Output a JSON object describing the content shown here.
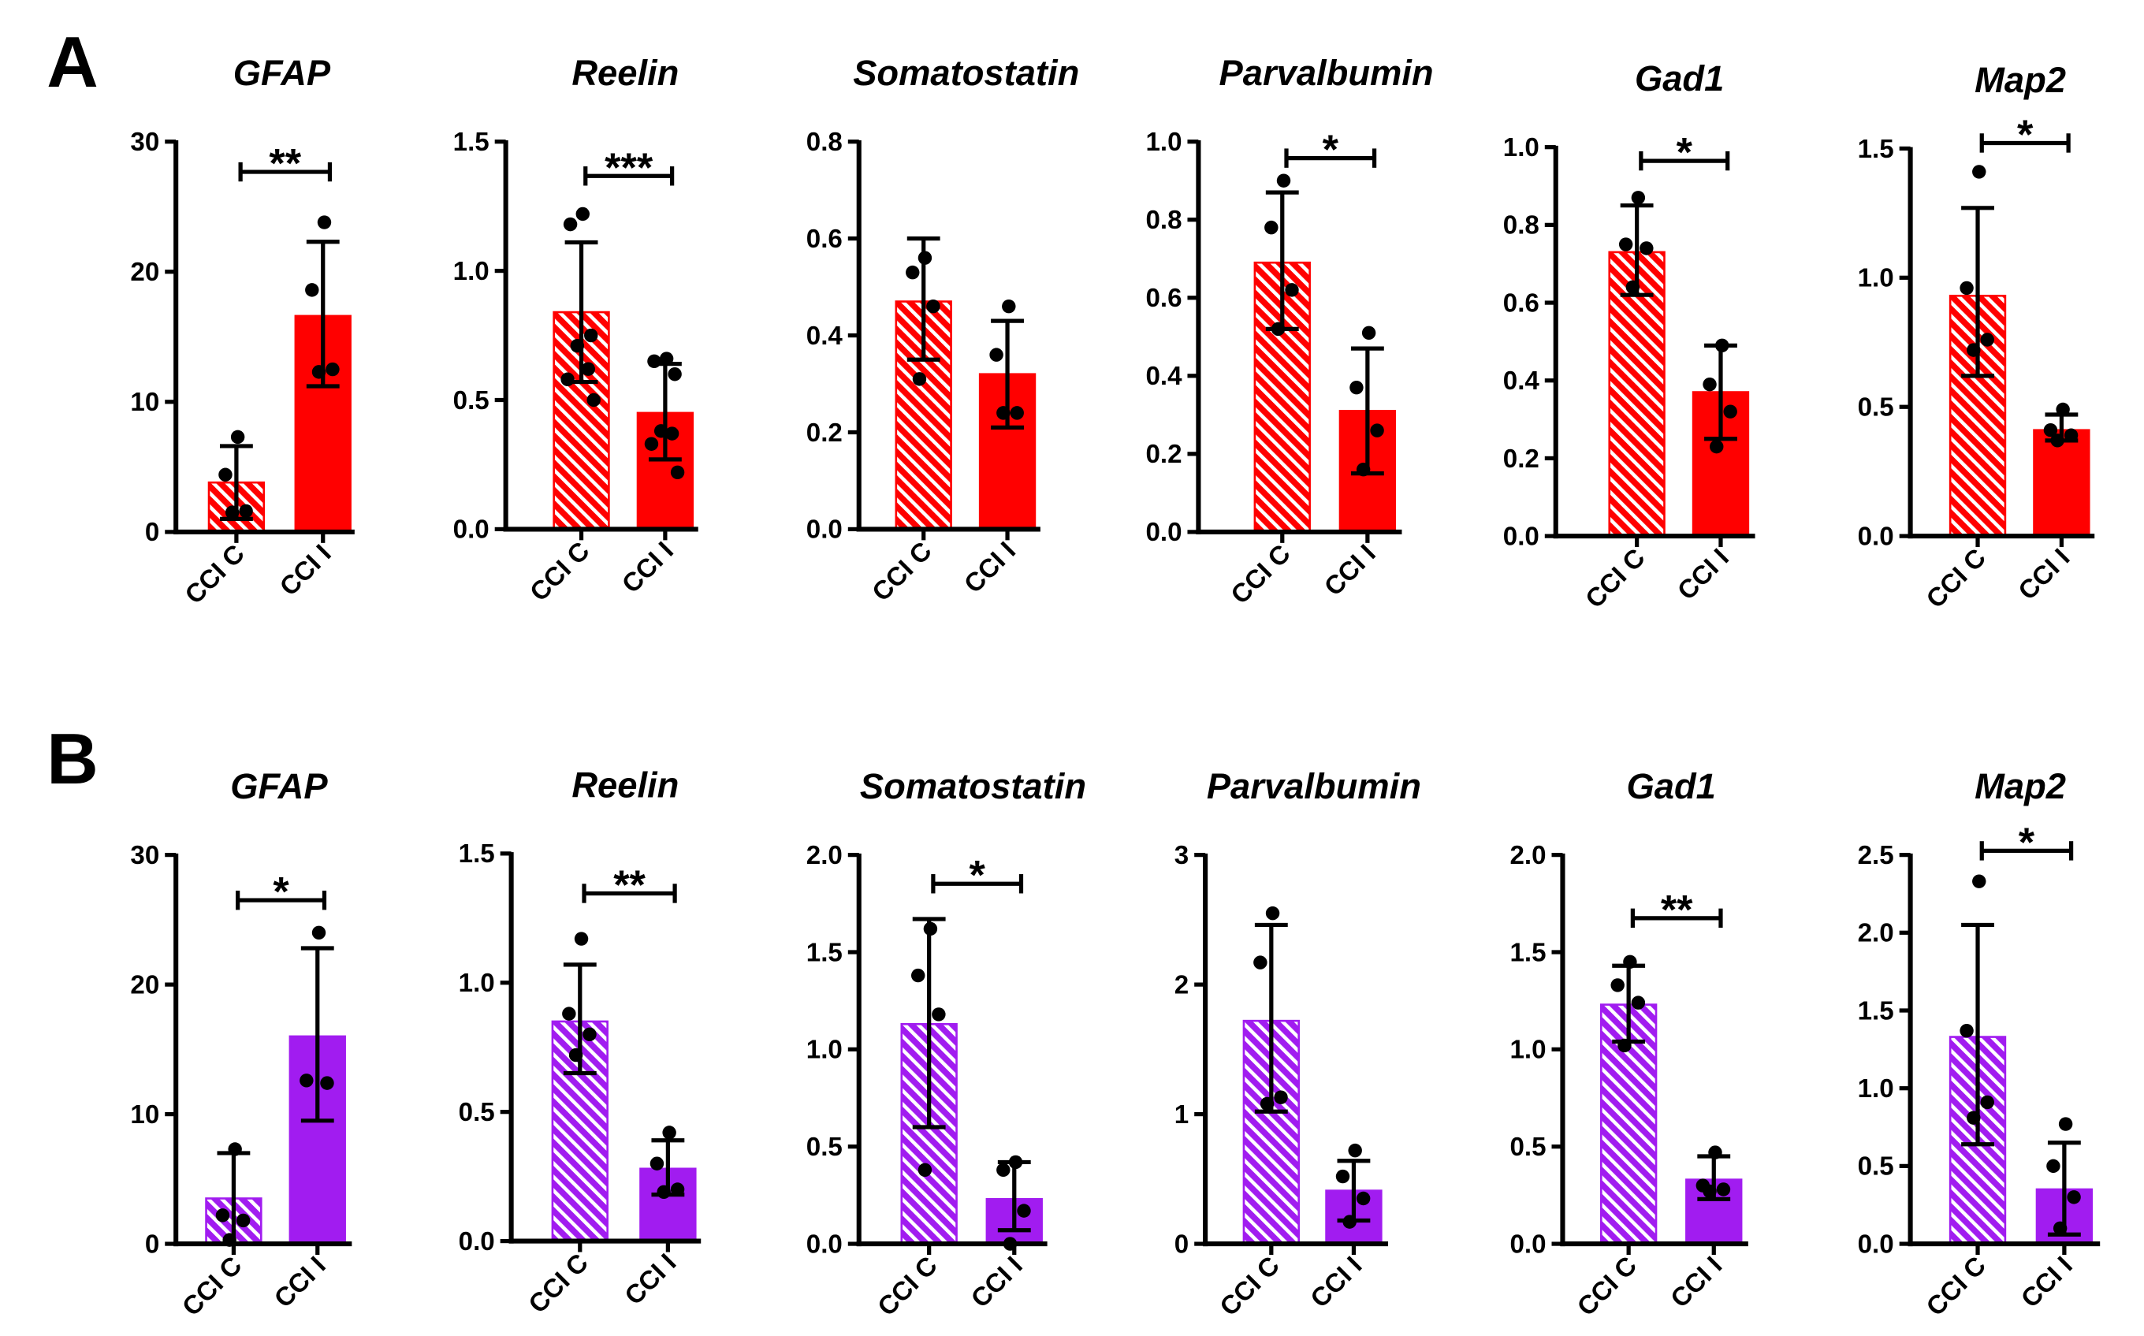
{
  "panels": [
    {
      "label": "A"
    },
    {
      "label": "B"
    }
  ],
  "chart_data": [
    {
      "type": "bar",
      "title": "GFAP",
      "color": "#FF0000",
      "categories": [
        "CCI C",
        "CCI I"
      ],
      "ylim": [
        0,
        30
      ],
      "yticks": [
        "0",
        "10",
        "20",
        "30"
      ],
      "series": [
        {
          "name": "CCI C",
          "mean": 3.8,
          "error": [
            1.0,
            6.6
          ],
          "points": [
            7.3,
            4.4,
            1.6,
            1.5
          ]
        },
        {
          "name": "CCI I",
          "mean": 16.6,
          "error": [
            11.2,
            22.3
          ],
          "points": [
            23.8,
            18.6,
            12.5,
            12.3
          ]
        }
      ],
      "significance": "**"
    },
    {
      "type": "bar",
      "title": "Reelin",
      "color": "#FF0000",
      "categories": [
        "CCI C",
        "CCI I"
      ],
      "ylim": [
        0,
        1.5
      ],
      "yticks": [
        "0.0",
        "0.5",
        "1.0",
        "1.5"
      ],
      "series": [
        {
          "name": "CCI C",
          "mean": 0.84,
          "error": [
            0.57,
            1.11
          ],
          "points": [
            1.22,
            1.18,
            0.75,
            0.71,
            0.62,
            0.58,
            0.5
          ]
        },
        {
          "name": "CCI I",
          "mean": 0.45,
          "error": [
            0.27,
            0.64
          ],
          "points": [
            0.66,
            0.65,
            0.6,
            0.38,
            0.37,
            0.33,
            0.22
          ]
        }
      ],
      "significance": "***"
    },
    {
      "type": "bar",
      "title": "Somatostatin",
      "color": "#FF0000",
      "categories": [
        "CCI C",
        "CCI I"
      ],
      "ylim": [
        0,
        0.8
      ],
      "yticks": [
        "0.0",
        "0.2",
        "0.4",
        "0.6",
        "0.8"
      ],
      "series": [
        {
          "name": "CCI C",
          "mean": 0.47,
          "error": [
            0.35,
            0.6
          ],
          "points": [
            0.56,
            0.53,
            0.46,
            0.31
          ]
        },
        {
          "name": "CCI I",
          "mean": 0.32,
          "error": [
            0.21,
            0.43
          ],
          "points": [
            0.46,
            0.36,
            0.24,
            0.24
          ]
        }
      ],
      "significance": null
    },
    {
      "type": "bar",
      "title": "Parvalbumin",
      "color": "#FF0000",
      "categories": [
        "CCI C",
        "CCI I"
      ],
      "ylim": [
        0,
        1.0
      ],
      "yticks": [
        "0.0",
        "0.2",
        "0.4",
        "0.6",
        "0.8",
        "1.0"
      ],
      "series": [
        {
          "name": "CCI C",
          "mean": 0.69,
          "error": [
            0.52,
            0.87
          ],
          "points": [
            0.9,
            0.78,
            0.62,
            0.52
          ]
        },
        {
          "name": "CCI I",
          "mean": 0.31,
          "error": [
            0.15,
            0.47
          ],
          "points": [
            0.51,
            0.37,
            0.26,
            0.16
          ]
        }
      ],
      "significance": "*"
    },
    {
      "type": "bar",
      "title": "Gad1",
      "color": "#FF0000",
      "categories": [
        "CCI C",
        "CCI I"
      ],
      "ylim": [
        0,
        1.0
      ],
      "yticks": [
        "0.0",
        "0.2",
        "0.4",
        "0.6",
        "0.8",
        "1.0"
      ],
      "series": [
        {
          "name": "CCI C",
          "mean": 0.73,
          "error": [
            0.62,
            0.85
          ],
          "points": [
            0.87,
            0.75,
            0.74,
            0.64
          ]
        },
        {
          "name": "CCI I",
          "mean": 0.37,
          "error": [
            0.25,
            0.49
          ],
          "points": [
            0.49,
            0.39,
            0.32,
            0.23
          ]
        }
      ],
      "significance": "*"
    },
    {
      "type": "bar",
      "title": "Map2",
      "color": "#FF0000",
      "categories": [
        "CCI C",
        "CCI I"
      ],
      "ylim": [
        0,
        1.5
      ],
      "yticks": [
        "0.0",
        "0.5",
        "1.0",
        "1.5"
      ],
      "series": [
        {
          "name": "CCI C",
          "mean": 0.93,
          "error": [
            0.62,
            1.27
          ],
          "points": [
            1.41,
            0.96,
            0.76,
            0.72
          ]
        },
        {
          "name": "CCI I",
          "mean": 0.41,
          "error": [
            0.37,
            0.47
          ],
          "points": [
            0.49,
            0.41,
            0.39,
            0.37
          ]
        }
      ],
      "significance": "*"
    },
    {
      "type": "bar",
      "title": "GFAP",
      "color": "#A11CF0",
      "categories": [
        "CCI C",
        "CCI I"
      ],
      "ylim": [
        0,
        30
      ],
      "yticks": [
        "0",
        "10",
        "20",
        "30"
      ],
      "series": [
        {
          "name": "CCI C",
          "mean": 3.5,
          "error": [
            0.0,
            7.0
          ],
          "points": [
            7.3,
            2.2,
            1.8,
            0.3
          ]
        },
        {
          "name": "CCI I",
          "mean": 16.0,
          "error": [
            9.5,
            22.8
          ],
          "points": [
            24.0,
            12.6,
            12.4
          ]
        }
      ],
      "significance": "*"
    },
    {
      "type": "bar",
      "title": "Reelin",
      "color": "#A11CF0",
      "categories": [
        "CCI C",
        "CCI I"
      ],
      "ylim": [
        0,
        1.5
      ],
      "yticks": [
        "0.0",
        "0.5",
        "1.0",
        "1.5"
      ],
      "series": [
        {
          "name": "CCI C",
          "mean": 0.85,
          "error": [
            0.65,
            1.07
          ],
          "points": [
            1.17,
            0.88,
            0.8,
            0.72
          ]
        },
        {
          "name": "CCI I",
          "mean": 0.28,
          "error": [
            0.18,
            0.39
          ],
          "points": [
            0.42,
            0.3,
            0.2,
            0.19
          ]
        }
      ],
      "significance": "**"
    },
    {
      "type": "bar",
      "title": "Somatostatin",
      "color": "#A11CF0",
      "categories": [
        "CCI C",
        "CCI I"
      ],
      "ylim": [
        0,
        2.0
      ],
      "yticks": [
        "0.0",
        "0.5",
        "1.0",
        "1.5",
        "2.0"
      ],
      "series": [
        {
          "name": "CCI C",
          "mean": 1.13,
          "error": [
            0.6,
            1.67
          ],
          "points": [
            1.62,
            1.38,
            1.18,
            0.38
          ]
        },
        {
          "name": "CCI I",
          "mean": 0.23,
          "error": [
            0.07,
            0.42
          ],
          "points": [
            0.42,
            0.38,
            0.17,
            0.0
          ]
        }
      ],
      "significance": "*"
    },
    {
      "type": "bar",
      "title": "Parvalbumin",
      "color": "#A11CF0",
      "categories": [
        "CCI C",
        "CCI I"
      ],
      "ylim": [
        0,
        3
      ],
      "yticks": [
        "0",
        "1",
        "2",
        "3"
      ],
      "series": [
        {
          "name": "CCI C",
          "mean": 1.72,
          "error": [
            1.02,
            2.46
          ],
          "points": [
            2.55,
            2.17,
            1.13,
            1.08
          ]
        },
        {
          "name": "CCI I",
          "mean": 0.41,
          "error": [
            0.18,
            0.64
          ],
          "points": [
            0.72,
            0.52,
            0.35,
            0.17
          ]
        }
      ],
      "significance": null
    },
    {
      "type": "bar",
      "title": "Gad1",
      "color": "#A11CF0",
      "categories": [
        "CCI C",
        "CCI I"
      ],
      "ylim": [
        0,
        2.0
      ],
      "yticks": [
        "0.0",
        "0.5",
        "1.0",
        "1.5",
        "2.0"
      ],
      "series": [
        {
          "name": "CCI C",
          "mean": 1.23,
          "error": [
            1.04,
            1.43
          ],
          "points": [
            1.45,
            1.33,
            1.24,
            1.02
          ]
        },
        {
          "name": "CCI I",
          "mean": 0.33,
          "error": [
            0.23,
            0.45
          ],
          "points": [
            0.47,
            0.3,
            0.28,
            0.27
          ]
        }
      ],
      "significance": "**"
    },
    {
      "type": "bar",
      "title": "Map2",
      "color": "#A11CF0",
      "categories": [
        "CCI C",
        "CCI I"
      ],
      "ylim": [
        0,
        2.5
      ],
      "yticks": [
        "0.0",
        "0.5",
        "1.0",
        "1.5",
        "2.0",
        "2.5"
      ],
      "series": [
        {
          "name": "CCI C",
          "mean": 1.33,
          "error": [
            0.64,
            2.05
          ],
          "points": [
            2.33,
            1.37,
            0.91,
            0.81
          ]
        },
        {
          "name": "CCI I",
          "mean": 0.35,
          "error": [
            0.06,
            0.65
          ],
          "points": [
            0.77,
            0.5,
            0.3,
            0.1
          ]
        }
      ],
      "significance": "*"
    }
  ]
}
